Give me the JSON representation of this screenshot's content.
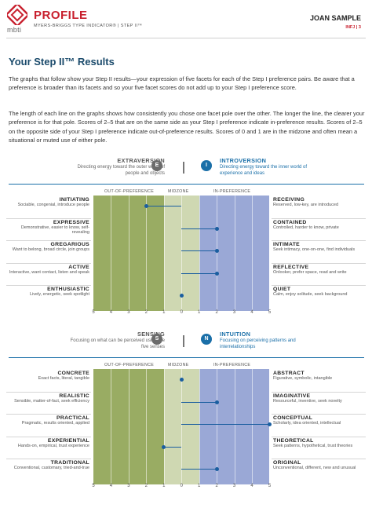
{
  "header": {
    "brand": "mbti",
    "title": "PROFILE",
    "subtitle": "MYERS-BRIGGS TYPE INDICATOR®  |  STEP II™",
    "name": "JOAN SAMPLE",
    "type_page": "INFJ | 3",
    "colors": {
      "brand_red": "#c8202e",
      "heading_blue": "#1a4a6b",
      "accent_blue": "#1a6fa8"
    }
  },
  "intro": {
    "heading": "Your Step II™ Results",
    "para1": "The graphs that follow show your Step II results—your expression of five facets for each of the Step I preference pairs. Be aware that a preference is broader than its facets and so your five facet scores do not add up to your Step I preference score.",
    "para2": "The length of each line on the graphs shows how consistently you chose one facet pole over the other. The longer the line, the clearer your preference is for that pole. Scores of 2–5 that are on the same side as your Step I preference indicate in-preference results. Scores of 2–5 on the opposite side of your Step I preference indicate out-of-preference results. Scores of 0 and 1 are in the midzone and often mean a situational or muted use of either pole."
  },
  "zone_labels": {
    "out": "OUT-OF-PREFERENCE",
    "mid": "MIDZONE",
    "in": "IN-PREFERENCE"
  },
  "scale_ticks": [
    "5",
    "4",
    "3",
    "2",
    "1",
    "0",
    "1",
    "2",
    "3",
    "4",
    "5"
  ],
  "sections": [
    {
      "left_pole": {
        "name": "EXTRAVERSION",
        "letter": "E",
        "desc": "Directing energy toward the outer world of people and objects"
      },
      "right_pole": {
        "name": "INTROVERSION",
        "letter": "I",
        "desc": "Directing energy toward the inner world of experience and ideas"
      },
      "facets": [
        {
          "left": "INITIATING",
          "left_desc": "Sociable, congenial, introduce people",
          "right": "RECEIVING",
          "right_desc": "Reserved, low-key, are introduced",
          "score": -2,
          "side": "left"
        },
        {
          "left": "EXPRESSIVE",
          "left_desc": "Demonstrative, easier to know, self-revealing",
          "right": "CONTAINED",
          "right_desc": "Controlled, harder to know, private",
          "score": 2,
          "side": "right"
        },
        {
          "left": "GREGARIOUS",
          "left_desc": "Want to belong, broad circle, join groups",
          "right": "INTIMATE",
          "right_desc": "Seek intimacy, one-on-one, find individuals",
          "score": 2,
          "side": "right"
        },
        {
          "left": "ACTIVE",
          "left_desc": "Interactive, want contact, listen and speak",
          "right": "REFLECTIVE",
          "right_desc": "Onlooker, prefer space, read and write",
          "score": 2,
          "side": "right"
        },
        {
          "left": "ENTHUSIASTIC",
          "left_desc": "Lively, energetic, seek spotlight",
          "right": "QUIET",
          "right_desc": "Calm, enjoy solitude, seek background",
          "score": 0,
          "side": "center"
        }
      ]
    },
    {
      "left_pole": {
        "name": "SENSING",
        "letter": "S",
        "desc": "Focusing on what can be perceived using the five senses"
      },
      "right_pole": {
        "name": "INTUITION",
        "letter": "N",
        "desc": "Focusing on perceiving patterns and interrelationships"
      },
      "facets": [
        {
          "left": "CONCRETE",
          "left_desc": "Exact facts, literal, tangible",
          "right": "ABSTRACT",
          "right_desc": "Figurative, symbolic, intangible",
          "score": 0,
          "side": "center"
        },
        {
          "left": "REALISTIC",
          "left_desc": "Sensible, matter-of-fact, seek efficiency",
          "right": "IMAGINATIVE",
          "right_desc": "Resourceful, inventive, seek novelty",
          "score": 2,
          "side": "right"
        },
        {
          "left": "PRACTICAL",
          "left_desc": "Pragmatic, results oriented, applied",
          "right": "CONCEPTUAL",
          "right_desc": "Scholarly, idea oriented, intellectual",
          "score": 5,
          "side": "right"
        },
        {
          "left": "EXPERIENTIAL",
          "left_desc": "Hands-on, empirical, trust experience",
          "right": "THEORETICAL",
          "right_desc": "Seek patterns, hypothetical, trust theories",
          "score": -1,
          "side": "left"
        },
        {
          "left": "TRADITIONAL",
          "left_desc": "Conventional, customary, tried-and-true",
          "right": "ORIGINAL",
          "right_desc": "Unconventional, different, new and unusual",
          "score": 2,
          "side": "right"
        }
      ]
    }
  ]
}
